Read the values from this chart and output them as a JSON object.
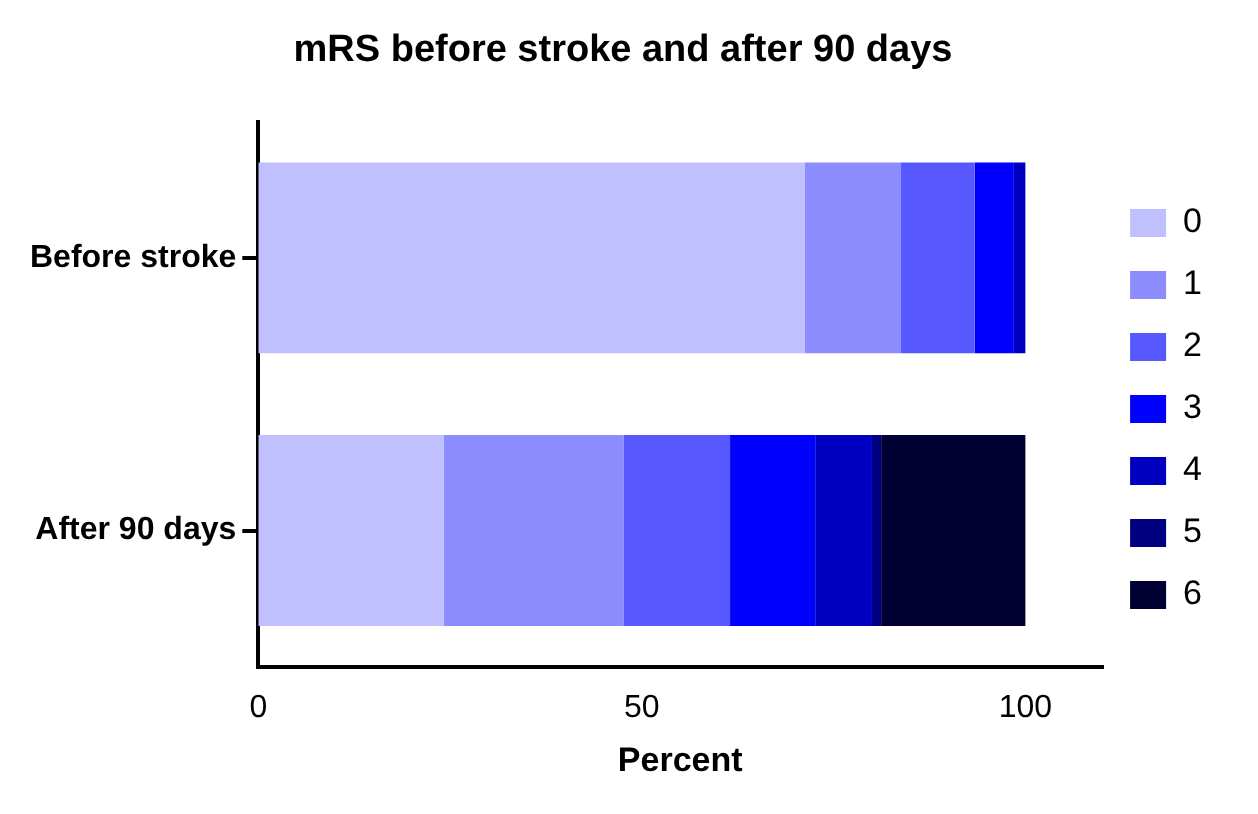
{
  "chart_data": {
    "type": "bar",
    "orientation": "horizontal",
    "stacked": true,
    "title": "mRS before stroke and after 90 days",
    "xlabel": "Percent",
    "categories": [
      "Before stroke",
      "After 90 days"
    ],
    "series": [
      {
        "name": "0",
        "color": "#c0c0ff",
        "values": [
          71.2,
          24.2
        ]
      },
      {
        "name": "1",
        "color": "#8c8cff",
        "values": [
          12.5,
          23.4
        ]
      },
      {
        "name": "2",
        "color": "#5858ff",
        "values": [
          9.7,
          13.9
        ]
      },
      {
        "name": "3",
        "color": "#0000ff",
        "values": [
          5.1,
          11.1
        ]
      },
      {
        "name": "4",
        "color": "#0000c0",
        "values": [
          1.5,
          7.4
        ]
      },
      {
        "name": "5",
        "color": "#000080",
        "values": [
          0,
          1.2
        ]
      },
      {
        "name": "6",
        "color": "#000033",
        "values": [
          0,
          18.8
        ]
      }
    ],
    "xlim": [
      0,
      110
    ],
    "xticks": [
      0,
      50,
      100
    ],
    "grid": false,
    "legend": "right"
  }
}
